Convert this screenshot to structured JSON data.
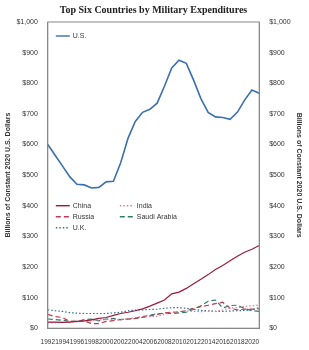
{
  "chart_data": {
    "type": "line",
    "title": "Top Six Countries by Military Expenditures",
    "ylabel": "Billions of Constant 2020 U.S. Dollars",
    "y2label": "Billions of Constant 2020 U.S. Dollars",
    "categories": [
      1992,
      null,
      1994,
      null,
      1996,
      null,
      1998,
      null,
      2000,
      null,
      2002,
      null,
      2004,
      null,
      2006,
      null,
      2008,
      null,
      2010,
      null,
      2012,
      null,
      2014,
      null,
      2016,
      null,
      2018,
      null,
      2020,
      null
    ],
    "series": [
      {
        "name": "U.S.",
        "color": "#3b6fb0",
        "line_style": "solid",
        "values": [
          600,
          565,
          530,
          495,
          470,
          468,
          458,
          460,
          478,
          480,
          540,
          620,
          675,
          705,
          715,
          735,
          790,
          850,
          875,
          865,
          810,
          750,
          705,
          690,
          688,
          682,
          705,
          745,
          778,
          767
        ]
      },
      {
        "name": "China",
        "color": "#9b1b3b",
        "line_style": "solid",
        "values": [
          20,
          20,
          19,
          20,
          22,
          24,
          27,
          32,
          35,
          42,
          48,
          52,
          57,
          63,
          72,
          82,
          92,
          112,
          118,
          130,
          145,
          160,
          175,
          192,
          205,
          220,
          235,
          248,
          258,
          270
        ]
      },
      {
        "name": "India",
        "color": "#d9808f",
        "line_style": "dotted",
        "values": [
          17,
          18,
          19,
          20,
          21,
          23,
          24,
          27,
          28,
          29,
          29,
          30,
          35,
          38,
          38,
          39,
          45,
          52,
          55,
          56,
          55,
          54,
          56,
          55,
          60,
          66,
          67,
          72,
          73,
          76
        ]
      },
      {
        "name": "Russia",
        "color": "#c0384e",
        "line_style": "dashed",
        "values": [
          45,
          38,
          35,
          22,
          22,
          24,
          15,
          15,
          22,
          25,
          28,
          30,
          32,
          35,
          40,
          45,
          50,
          52,
          53,
          57,
          65,
          70,
          75,
          80,
          85,
          65,
          60,
          62,
          62,
          63
        ]
      },
      {
        "name": "Saudi Arabia",
        "color": "#2f7a70",
        "line_style": "dashed",
        "values": [
          30,
          28,
          26,
          22,
          22,
          28,
          30,
          24,
          30,
          32,
          28,
          30,
          32,
          38,
          42,
          48,
          48,
          48,
          50,
          52,
          62,
          73,
          88,
          92,
          66,
          74,
          75,
          64,
          57,
          55
        ]
      },
      {
        "name": "U.K.",
        "color": "#2f6d8e",
        "line_style": "dotted",
        "values": [
          60,
          57,
          55,
          51,
          49,
          48,
          48,
          48,
          48,
          50,
          52,
          57,
          59,
          60,
          61,
          62,
          65,
          67,
          67,
          65,
          62,
          58,
          57,
          55,
          55,
          56,
          57,
          58,
          60,
          68
        ]
      }
    ],
    "ylim": [
      0,
      1000
    ],
    "yticks": [
      {
        "value": 0,
        "label": "$0"
      },
      {
        "value": 100,
        "label": "$100"
      },
      {
        "value": 200,
        "label": "$200"
      },
      {
        "value": 300,
        "label": "$300"
      },
      {
        "value": 400,
        "label": "$400"
      },
      {
        "value": 500,
        "label": "$500"
      },
      {
        "value": 600,
        "label": "$600"
      },
      {
        "value": 700,
        "label": "$700"
      },
      {
        "value": 800,
        "label": "$800"
      },
      {
        "value": 900,
        "label": "$900"
      },
      {
        "value": 1000,
        "label": "$1,000"
      }
    ],
    "y2lim": [
      0,
      1000
    ],
    "y2ticks": [
      {
        "value": 0,
        "label": "$0"
      },
      {
        "value": 100,
        "label": "$100"
      },
      {
        "value": 200,
        "label": "$200"
      },
      {
        "value": 300,
        "label": "$300"
      },
      {
        "value": 400,
        "label": "$400"
      },
      {
        "value": 500,
        "label": "$500"
      },
      {
        "value": 600,
        "label": "$600"
      },
      {
        "value": 700,
        "label": "$700"
      },
      {
        "value": 800,
        "label": "$800"
      },
      {
        "value": 900,
        "label": "$900"
      },
      {
        "value": 1000,
        "label": "$1,000"
      }
    ],
    "grid": false,
    "legend": "upper left"
  }
}
